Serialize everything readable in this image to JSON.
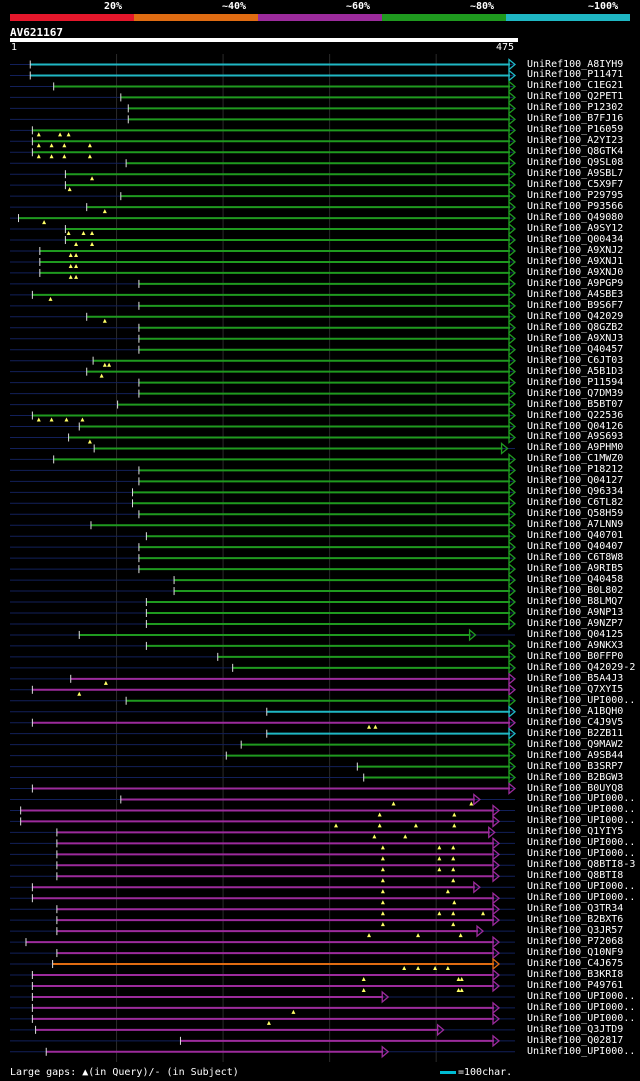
{
  "legend": {
    "labels": [
      "20%",
      "~40%",
      "~60%",
      "~80%",
      "~100%"
    ],
    "colors": [
      "#e5172b",
      "#e06c12",
      "#9c2b9c",
      "#1f9a1f",
      "#1fb7c4"
    ]
  },
  "query": {
    "id": "AV621167",
    "start": "1",
    "end": "475",
    "length": 475
  },
  "footer": {
    "text": "Large gaps: ▲(in Query)/- (in Subject)",
    "scale_key": "=100char."
  },
  "chart_data": {
    "type": "alignment-overview",
    "title": "AV621167",
    "x_range": [
      1,
      475
    ],
    "identity_colors": {
      "cyan": "#1fb7c4",
      "green": "#1f9a1f",
      "purple": "#9c2b9c",
      "orange": "#e06c12",
      "red": "#e5172b"
    },
    "hits": [
      {
        "id": "UniRef100_A8IYH9",
        "start": 20,
        "end": 475,
        "color": "cyan",
        "gaps": []
      },
      {
        "id": "UniRef100_P11471",
        "start": 20,
        "end": 475,
        "color": "cyan",
        "gaps": []
      },
      {
        "id": "UniRef100_C1EG21",
        "start": 42,
        "end": 475,
        "color": "green",
        "gaps": []
      },
      {
        "id": "UniRef100_Q2PET1",
        "start": 105,
        "end": 475,
        "color": "green",
        "gaps": []
      },
      {
        "id": "UniRef100_P12302",
        "start": 112,
        "end": 475,
        "color": "green",
        "gaps": []
      },
      {
        "id": "UniRef100_B7FJ16",
        "start": 112,
        "end": 475,
        "color": "green",
        "gaps": []
      },
      {
        "id": "UniRef100_P16059",
        "start": 22,
        "end": 475,
        "color": "green",
        "gaps": [
          28,
          48,
          56
        ]
      },
      {
        "id": "UniRef100_A2YI23",
        "start": 22,
        "end": 475,
        "color": "green",
        "gaps": [
          28,
          40,
          52,
          76
        ]
      },
      {
        "id": "UniRef100_Q8GTK4",
        "start": 22,
        "end": 475,
        "color": "green",
        "gaps": [
          28,
          40,
          52,
          76
        ]
      },
      {
        "id": "UniRef100_Q9SL08",
        "start": 110,
        "end": 475,
        "color": "green",
        "gaps": []
      },
      {
        "id": "UniRef100_A9SBL7",
        "start": 53,
        "end": 475,
        "color": "green",
        "gaps": [
          78
        ]
      },
      {
        "id": "UniRef100_C5X9F7",
        "start": 53,
        "end": 475,
        "color": "green",
        "gaps": [
          57
        ]
      },
      {
        "id": "UniRef100_P29795",
        "start": 105,
        "end": 475,
        "color": "green",
        "gaps": []
      },
      {
        "id": "UniRef100_P93566",
        "start": 73,
        "end": 475,
        "color": "green",
        "gaps": [
          90
        ]
      },
      {
        "id": "UniRef100_Q49080",
        "start": 9,
        "end": 475,
        "color": "green",
        "gaps": [
          33
        ]
      },
      {
        "id": "UniRef100_A9SY12",
        "start": 53,
        "end": 475,
        "color": "green",
        "gaps": [
          56,
          70,
          78
        ]
      },
      {
        "id": "UniRef100_Q00434",
        "start": 53,
        "end": 475,
        "color": "green",
        "gaps": [
          63,
          78
        ]
      },
      {
        "id": "UniRef100_A9XNJ2",
        "start": 29,
        "end": 475,
        "color": "green",
        "gaps": [
          58,
          63
        ]
      },
      {
        "id": "UniRef100_A9XNJ1",
        "start": 29,
        "end": 475,
        "color": "green",
        "gaps": [
          58,
          63
        ]
      },
      {
        "id": "UniRef100_A9XNJ0",
        "start": 29,
        "end": 475,
        "color": "green",
        "gaps": [
          58,
          63
        ]
      },
      {
        "id": "UniRef100_A9PGP9",
        "start": 122,
        "end": 475,
        "color": "green",
        "gaps": []
      },
      {
        "id": "UniRef100_A4SBE3",
        "start": 22,
        "end": 475,
        "color": "green",
        "gaps": [
          39
        ]
      },
      {
        "id": "UniRef100_B9S6F7",
        "start": 122,
        "end": 475,
        "color": "green",
        "gaps": []
      },
      {
        "id": "UniRef100_Q42029",
        "start": 73,
        "end": 475,
        "color": "green",
        "gaps": [
          90
        ]
      },
      {
        "id": "UniRef100_Q8GZB2",
        "start": 122,
        "end": 475,
        "color": "green",
        "gaps": []
      },
      {
        "id": "UniRef100_A9XNJ3",
        "start": 122,
        "end": 475,
        "color": "green",
        "gaps": []
      },
      {
        "id": "UniRef100_Q40457",
        "start": 122,
        "end": 475,
        "color": "green",
        "gaps": []
      },
      {
        "id": "UniRef100_C6JT03",
        "start": 79,
        "end": 475,
        "color": "green",
        "gaps": [
          90,
          94
        ]
      },
      {
        "id": "UniRef100_A5B1D3",
        "start": 73,
        "end": 475,
        "color": "green",
        "gaps": [
          87
        ]
      },
      {
        "id": "UniRef100_P11594",
        "start": 122,
        "end": 475,
        "color": "green",
        "gaps": []
      },
      {
        "id": "UniRef100_Q7DM39",
        "start": 122,
        "end": 475,
        "color": "green",
        "gaps": []
      },
      {
        "id": "UniRef100_B5BT07",
        "start": 102,
        "end": 475,
        "color": "green",
        "gaps": []
      },
      {
        "id": "UniRef100_Q22536",
        "start": 22,
        "end": 475,
        "color": "green",
        "gaps": [
          28,
          40,
          54,
          69
        ]
      },
      {
        "id": "UniRef100_Q04126",
        "start": 66,
        "end": 475,
        "color": "green",
        "gaps": []
      },
      {
        "id": "UniRef100_A9S693",
        "start": 56,
        "end": 475,
        "color": "green",
        "gaps": [
          76
        ]
      },
      {
        "id": "UniRef100_A9PHM0",
        "start": 80,
        "end": 468,
        "color": "green",
        "gaps": []
      },
      {
        "id": "UniRef100_C1MWZ0",
        "start": 42,
        "end": 475,
        "color": "green",
        "gaps": []
      },
      {
        "id": "UniRef100_P18212",
        "start": 122,
        "end": 475,
        "color": "green",
        "gaps": []
      },
      {
        "id": "UniRef100_Q04127",
        "start": 122,
        "end": 475,
        "color": "green",
        "gaps": []
      },
      {
        "id": "UniRef100_Q96334",
        "start": 116,
        "end": 475,
        "color": "green",
        "gaps": []
      },
      {
        "id": "UniRef100_C6TL82",
        "start": 116,
        "end": 475,
        "color": "green",
        "gaps": []
      },
      {
        "id": "UniRef100_Q58H59",
        "start": 122,
        "end": 475,
        "color": "green",
        "gaps": []
      },
      {
        "id": "UniRef100_A7LNN9",
        "start": 77,
        "end": 475,
        "color": "green",
        "gaps": []
      },
      {
        "id": "UniRef100_Q40701",
        "start": 129,
        "end": 475,
        "color": "green",
        "gaps": []
      },
      {
        "id": "UniRef100_Q40407",
        "start": 122,
        "end": 475,
        "color": "green",
        "gaps": []
      },
      {
        "id": "UniRef100_C6T8W8",
        "start": 122,
        "end": 475,
        "color": "green",
        "gaps": []
      },
      {
        "id": "UniRef100_A9RIB5",
        "start": 122,
        "end": 475,
        "color": "green",
        "gaps": []
      },
      {
        "id": "UniRef100_Q40458",
        "start": 155,
        "end": 475,
        "color": "green",
        "gaps": []
      },
      {
        "id": "UniRef100_B0L802",
        "start": 155,
        "end": 475,
        "color": "green",
        "gaps": []
      },
      {
        "id": "UniRef100_B8LMQ7",
        "start": 129,
        "end": 475,
        "color": "green",
        "gaps": []
      },
      {
        "id": "UniRef100_A9NP13",
        "start": 129,
        "end": 475,
        "color": "green",
        "gaps": []
      },
      {
        "id": "UniRef100_A9NZP7",
        "start": 129,
        "end": 475,
        "color": "green",
        "gaps": []
      },
      {
        "id": "UniRef100_Q04125",
        "start": 66,
        "end": 438,
        "color": "green",
        "gaps": []
      },
      {
        "id": "UniRef100_A9NKX3",
        "start": 129,
        "end": 475,
        "color": "green",
        "gaps": []
      },
      {
        "id": "UniRef100_B0FFP0",
        "start": 196,
        "end": 475,
        "color": "green",
        "gaps": []
      },
      {
        "id": "UniRef100_Q42029-2",
        "start": 210,
        "end": 475,
        "color": "green",
        "gaps": []
      },
      {
        "id": "UniRef100_B5A4J3",
        "start": 58,
        "end": 475,
        "color": "purple",
        "gaps": [
          91
        ]
      },
      {
        "id": "UniRef100_Q7XYI5",
        "start": 22,
        "end": 475,
        "color": "purple",
        "gaps": [
          66
        ]
      },
      {
        "id": "UniRef100_UPI000..",
        "start": 110,
        "end": 475,
        "color": "green",
        "gaps": []
      },
      {
        "id": "UniRef100_A1BQH0",
        "start": 242,
        "end": 475,
        "color": "cyan",
        "gaps": []
      },
      {
        "id": "UniRef100_C4J9V5",
        "start": 22,
        "end": 475,
        "color": "purple",
        "gaps": [
          338,
          344
        ]
      },
      {
        "id": "UniRef100_B2ZB11",
        "start": 242,
        "end": 475,
        "color": "cyan",
        "gaps": []
      },
      {
        "id": "UniRef100_Q9MAW2",
        "start": 218,
        "end": 475,
        "color": "green",
        "gaps": []
      },
      {
        "id": "UniRef100_A9SB44",
        "start": 204,
        "end": 475,
        "color": "green",
        "gaps": []
      },
      {
        "id": "UniRef100_B3SRP7",
        "start": 327,
        "end": 475,
        "color": "green",
        "gaps": []
      },
      {
        "id": "UniRef100_B2BGW3",
        "start": 333,
        "end": 475,
        "color": "green",
        "gaps": []
      },
      {
        "id": "UniRef100_B0UYQ8",
        "start": 22,
        "end": 475,
        "color": "purple",
        "gaps": []
      },
      {
        "id": "UniRef100_UPI000..1",
        "start": 105,
        "end": 442,
        "color": "purple",
        "gaps": [
          361,
          434
        ]
      },
      {
        "id": "UniRef100_UPI000..2",
        "start": 11,
        "end": 460,
        "color": "purple",
        "gaps": [
          348,
          418
        ]
      },
      {
        "id": "UniRef100_UPI000..3",
        "start": 11,
        "end": 460,
        "color": "purple",
        "gaps": [
          307,
          348,
          382,
          418
        ]
      },
      {
        "id": "UniRef100_Q1YIY5",
        "start": 45,
        "end": 456,
        "color": "purple",
        "gaps": [
          343,
          372
        ]
      },
      {
        "id": "UniRef100_UPI000..4",
        "start": 45,
        "end": 460,
        "color": "purple",
        "gaps": [
          351,
          404,
          417
        ]
      },
      {
        "id": "UniRef100_UPI000..5",
        "start": 45,
        "end": 460,
        "color": "purple",
        "gaps": [
          351,
          404,
          417
        ]
      },
      {
        "id": "UniRef100_Q8BTI8-3",
        "start": 45,
        "end": 460,
        "color": "purple",
        "gaps": [
          351,
          404,
          417
        ]
      },
      {
        "id": "UniRef100_Q8BTI8",
        "start": 45,
        "end": 460,
        "color": "purple",
        "gaps": [
          351,
          417
        ]
      },
      {
        "id": "UniRef100_UPI000..6",
        "start": 22,
        "end": 442,
        "color": "purple",
        "gaps": [
          351,
          412
        ]
      },
      {
        "id": "UniRef100_UPI000..7",
        "start": 22,
        "end": 460,
        "color": "purple",
        "gaps": [
          351,
          418
        ]
      },
      {
        "id": "UniRef100_Q3TR34",
        "start": 45,
        "end": 460,
        "color": "purple",
        "gaps": [
          351,
          404,
          417,
          445
        ]
      },
      {
        "id": "UniRef100_B2BXT6",
        "start": 45,
        "end": 460,
        "color": "purple",
        "gaps": [
          351,
          417
        ]
      },
      {
        "id": "UniRef100_Q3JR57",
        "start": 45,
        "end": 445,
        "color": "purple",
        "gaps": [
          338,
          384,
          424
        ]
      },
      {
        "id": "UniRef100_P72068",
        "start": 16,
        "end": 460,
        "color": "purple",
        "gaps": []
      },
      {
        "id": "UniRef100_Q10NF9",
        "start": 45,
        "end": 460,
        "color": "purple",
        "gaps": []
      },
      {
        "id": "UniRef100_C4J675",
        "start": 41,
        "end": 460,
        "color": "orange",
        "gaps": [
          371,
          384,
          400,
          412
        ]
      },
      {
        "id": "UniRef100_B3KRI8",
        "start": 22,
        "end": 460,
        "color": "purple",
        "gaps": [
          333,
          422,
          425
        ]
      },
      {
        "id": "UniRef100_P49761",
        "start": 22,
        "end": 460,
        "color": "purple",
        "gaps": [
          333,
          422,
          425
        ]
      },
      {
        "id": "UniRef100_UPI000..8",
        "start": 22,
        "end": 356,
        "color": "purple",
        "gaps": []
      },
      {
        "id": "UniRef100_UPI000..9",
        "start": 22,
        "end": 460,
        "color": "purple",
        "gaps": [
          267
        ]
      },
      {
        "id": "UniRef100_UPI000..10",
        "start": 22,
        "end": 460,
        "color": "purple",
        "gaps": [
          244
        ]
      },
      {
        "id": "UniRef100_Q3JTD9",
        "start": 25,
        "end": 408,
        "color": "purple",
        "gaps": []
      },
      {
        "id": "UniRef100_Q02817",
        "start": 161,
        "end": 460,
        "color": "purple",
        "gaps": []
      },
      {
        "id": "UniRef100_UPI000..11",
        "start": 35,
        "end": 356,
        "color": "purple",
        "gaps": []
      }
    ]
  }
}
